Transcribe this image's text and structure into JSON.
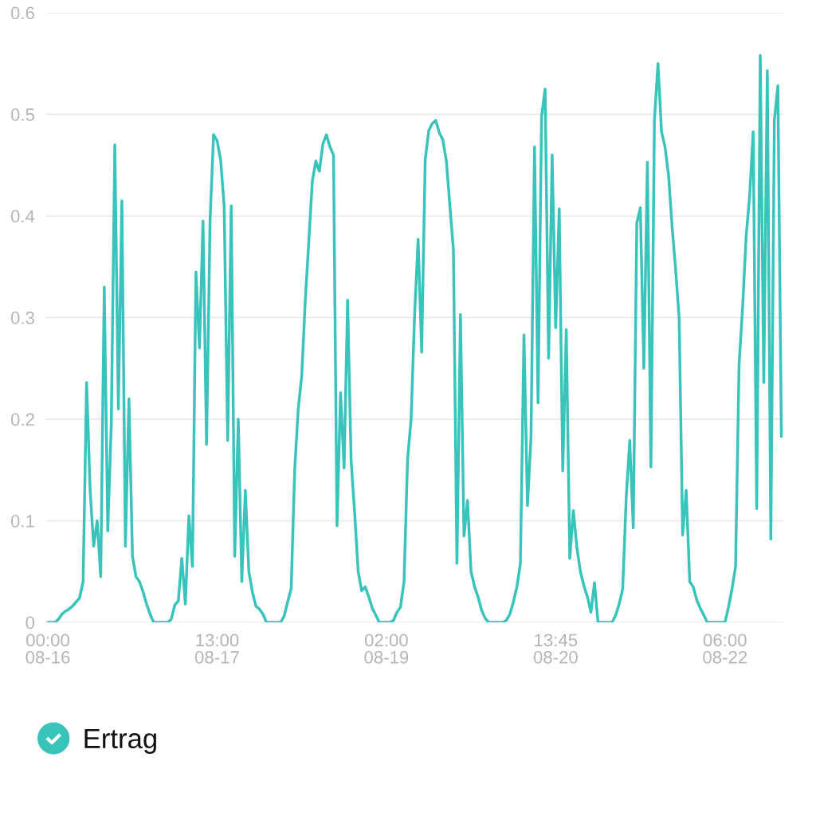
{
  "chart_data": {
    "type": "line",
    "categories": [
      "00:00\n08-16",
      null,
      null,
      null,
      null,
      null,
      null,
      null,
      null,
      null,
      null,
      null,
      null,
      null,
      null,
      null,
      null,
      null,
      null,
      null,
      null,
      null,
      null,
      null,
      null,
      null,
      null,
      null,
      null,
      null,
      null,
      null,
      null,
      null,
      null,
      null,
      null,
      null,
      null,
      null,
      null,
      null,
      null,
      null,
      null,
      null,
      null,
      null,
      "13:00\n08-17",
      null,
      null,
      null,
      null,
      null,
      null,
      null,
      null,
      null,
      null,
      null,
      null,
      null,
      null,
      null,
      null,
      null,
      null,
      null,
      null,
      null,
      null,
      null,
      null,
      null,
      null,
      null,
      null,
      null,
      null,
      null,
      null,
      null,
      null,
      null,
      null,
      null,
      null,
      null,
      null,
      null,
      null,
      null,
      null,
      null,
      null,
      null,
      "02:00\n08-19",
      null,
      null,
      null,
      null,
      null,
      null,
      null,
      null,
      null,
      null,
      null,
      null,
      null,
      null,
      null,
      null,
      null,
      null,
      null,
      null,
      null,
      null,
      null,
      null,
      null,
      null,
      null,
      null,
      null,
      null,
      null,
      null,
      null,
      null,
      null,
      null,
      null,
      null,
      null,
      null,
      null,
      null,
      null,
      null,
      null,
      null,
      null,
      "13:45\n08-20",
      null,
      null,
      null,
      null,
      null,
      null,
      null,
      null,
      null,
      null,
      null,
      null,
      null,
      null,
      null,
      null,
      null,
      null,
      null,
      null,
      null,
      null,
      null,
      null,
      null,
      null,
      null,
      null,
      null,
      null,
      null,
      null,
      null,
      null,
      null,
      null,
      null,
      null,
      null,
      null,
      null,
      null,
      null,
      null,
      null,
      null,
      null,
      "06:00\n08-22",
      null,
      null,
      null,
      null,
      null,
      null,
      null,
      null,
      null,
      null,
      null,
      null,
      null,
      null,
      null,
      null
    ],
    "series": [
      {
        "name": "Ertrag",
        "color": "#38c3bb",
        "values": [
          0,
          0,
          0,
          0.003,
          0.008,
          0.011,
          0.013,
          0.016,
          0.02,
          0.024,
          0.04,
          0.236,
          0.13,
          0.075,
          0.1,
          0.045,
          0.33,
          0.09,
          0.196,
          0.47,
          0.21,
          0.415,
          0.075,
          0.22,
          0.065,
          0.045,
          0.04,
          0.03,
          0.018,
          0.008,
          0,
          0,
          0,
          0,
          0,
          0.003,
          0.017,
          0.021,
          0.063,
          0.018,
          0.105,
          0.055,
          0.345,
          0.27,
          0.395,
          0.175,
          0.395,
          0.48,
          0.474,
          0.455,
          0.41,
          0.179,
          0.41,
          0.065,
          0.2,
          0.04,
          0.13,
          0.05,
          0.03,
          0.016,
          0.013,
          0.008,
          0,
          0,
          0,
          0,
          0,
          0.006,
          0.02,
          0.033,
          0.15,
          0.21,
          0.243,
          0.317,
          0.375,
          0.434,
          0.454,
          0.444,
          0.471,
          0.48,
          0.468,
          0.46,
          0.095,
          0.226,
          0.152,
          0.317,
          0.159,
          0.108,
          0.05,
          0.031,
          0.035,
          0.025,
          0.014,
          0.007,
          0,
          0,
          0,
          0,
          0.002,
          0.01,
          0.015,
          0.04,
          0.16,
          0.2,
          0.303,
          0.377,
          0.266,
          0.455,
          0.484,
          0.491,
          0.494,
          0.482,
          0.475,
          0.454,
          0.41,
          0.367,
          0.058,
          0.303,
          0.085,
          0.12,
          0.05,
          0.035,
          0.025,
          0.012,
          0.004,
          0,
          0,
          0,
          0,
          0,
          0.002,
          0.008,
          0.02,
          0.035,
          0.058,
          0.283,
          0.115,
          0.182,
          0.468,
          0.216,
          0.498,
          0.525,
          0.26,
          0.46,
          0.29,
          0.407,
          0.149,
          0.288,
          0.063,
          0.11,
          0.074,
          0.05,
          0.036,
          0.025,
          0.01,
          0.039,
          0,
          0,
          0,
          0,
          0,
          0.007,
          0.018,
          0.033,
          0.123,
          0.179,
          0.093,
          0.393,
          0.408,
          0.25,
          0.453,
          0.153,
          0.494,
          0.55,
          0.483,
          0.468,
          0.44,
          0.39,
          0.348,
          0.3,
          0.086,
          0.13,
          0.04,
          0.035,
          0.022,
          0.014,
          0.007,
          0,
          0,
          0,
          0,
          0,
          0,
          0.015,
          0.033,
          0.055,
          0.254,
          0.31,
          0.38,
          0.42,
          0.483,
          0.112,
          0.558,
          0.236,
          0.543,
          0.082,
          0.494,
          0.528,
          0.183
        ]
      }
    ],
    "ylim": [
      0,
      0.6
    ],
    "yticks": [
      0,
      0.1,
      0.2,
      0.3,
      0.4,
      0.5,
      0.6
    ],
    "grid": "y",
    "legend": "bottom left",
    "line_style": "solid"
  }
}
